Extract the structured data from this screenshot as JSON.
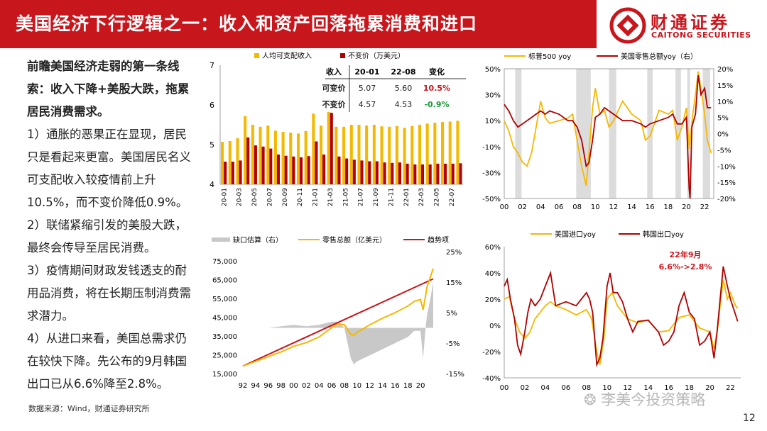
{
  "header": {
    "title": "美国经济下行逻辑之一：收入和资产回落拖累消费和进口"
  },
  "logo": {
    "cn": "财通证券",
    "en": "CAITONG SECURITIES"
  },
  "left_text": {
    "lead": "前瞻美国经济走弱的第一条线索：收入下降+美股大跌，拖累居民消费需求。",
    "p1": "1）通胀的恶果正在显现，居民只是看起来更富。美国居民名义可支配收入较疫情前上升10.5%，而不变价降低0.9%。",
    "p2": "2）联储紧缩引发的美股大跌，最终会传导至居民消费。",
    "p3": "3）疫情期间财政发钱透支的耐用品消费，将在长期压制消费需求潜力。",
    "p4": "4）从进口来看，美国总需求仍在较快下降。先公布的9月韩国出口已从6.6%降至2.8%。"
  },
  "source": "数据来源：Wind，财通证券研究所",
  "page_number": "12",
  "watermark": "李美今投资策略",
  "colors": {
    "accent_red": "#c8161d",
    "yellow": "#f5b800",
    "dark_red": "#b00000",
    "green": "#1a9a3a",
    "gray": "#c8c8c8"
  },
  "chart_data": [
    {
      "id": "income",
      "type": "bar",
      "legend": [
        "人均可支配收入",
        "不变价（万美元）"
      ],
      "categories": [
        "20-01",
        "20-02",
        "20-03",
        "20-04",
        "20-05",
        "20-06",
        "20-07",
        "20-08",
        "20-09",
        "20-10",
        "20-11",
        "20-12",
        "21-01",
        "21-02",
        "21-03",
        "21-04",
        "21-05",
        "21-06",
        "21-07",
        "21-08",
        "21-09",
        "21-10",
        "21-11",
        "21-12",
        "22-01",
        "22-02",
        "22-03",
        "22-04",
        "22-05",
        "22-06",
        "22-07",
        "22-08"
      ],
      "tick_labels": [
        "20-01",
        "20-03",
        "20-05",
        "20-07",
        "20-09",
        "20-11",
        "21-01",
        "21-03",
        "21-05",
        "21-07",
        "21-09",
        "21-11",
        "22-01",
        "22-03",
        "22-05",
        "22-07"
      ],
      "series": [
        {
          "name": "人均可支配收入",
          "values": [
            5.07,
            5.09,
            5.16,
            5.72,
            5.5,
            5.45,
            5.48,
            5.35,
            5.32,
            5.3,
            5.28,
            5.34,
            5.78,
            5.48,
            6.6,
            5.45,
            5.45,
            5.5,
            5.5,
            5.48,
            5.5,
            5.46,
            5.45,
            5.47,
            5.42,
            5.47,
            5.5,
            5.53,
            5.55,
            5.57,
            5.58,
            5.6
          ]
        },
        {
          "name": "不变价（万美元）",
          "values": [
            4.57,
            4.57,
            4.6,
            5.18,
            4.98,
            4.95,
            4.9,
            4.75,
            4.72,
            4.7,
            4.68,
            4.71,
            5.08,
            4.75,
            5.8,
            4.7,
            4.65,
            4.62,
            4.6,
            4.58,
            4.58,
            4.55,
            4.54,
            4.55,
            4.52,
            4.5,
            4.5,
            4.5,
            4.52,
            4.52,
            4.52,
            4.53
          ]
        }
      ],
      "ylim": [
        4,
        7
      ],
      "yticks": [
        "4",
        "5",
        "6",
        "7"
      ],
      "table": {
        "headers": [
          "收入",
          "20-01",
          "22-08",
          "变化"
        ],
        "rows": [
          [
            "可变价",
            "5.07",
            "5.60",
            "10.5%"
          ],
          [
            "不变价",
            "4.57",
            "4.53",
            "-0.9%"
          ]
        ]
      }
    },
    {
      "id": "sp500_retail",
      "type": "line",
      "legend": [
        "标普500 yoy",
        "美国零售总额yoy（右）"
      ],
      "xticks": [
        "00",
        "02",
        "04",
        "06",
        "08",
        "10",
        "12",
        "14",
        "16",
        "18",
        "20",
        "22"
      ],
      "yticks_left": [
        "50%",
        "30%",
        "10%",
        "-10%",
        "-30%",
        "-50%"
      ],
      "yticks_right": [
        "20%",
        "15%",
        "10%",
        "5%",
        "0%",
        "-5%",
        "-10%",
        "-15%",
        "-20%"
      ],
      "ylim_left": [
        -50,
        50
      ],
      "ylim_right": [
        -20,
        20
      ],
      "recessions": [
        [
          2001.2,
          2001.9
        ],
        [
          2007.9,
          2009.5
        ],
        [
          2020.1,
          2020.4
        ]
      ],
      "series": [
        {
          "name": "标普500 yoy",
          "x": [
            2000,
            2000.5,
            2001,
            2001.5,
            2002,
            2002.5,
            2003,
            2003.5,
            2004,
            2004.5,
            2005,
            2006,
            2007,
            2007.5,
            2008,
            2008.5,
            2009,
            2009.3,
            2009.7,
            2010,
            2010.5,
            2011,
            2011.5,
            2012,
            2013,
            2014,
            2015,
            2015.5,
            2016,
            2017,
            2018,
            2018.5,
            2019,
            2019.5,
            2020,
            2020.3,
            2020.7,
            2021,
            2021.3,
            2021.7,
            2022,
            2022.3,
            2022.7
          ],
          "values": [
            10,
            2,
            -10,
            -15,
            -22,
            -25,
            -15,
            5,
            25,
            12,
            8,
            10,
            12,
            15,
            -5,
            -25,
            -40,
            -15,
            20,
            35,
            15,
            18,
            5,
            10,
            25,
            15,
            10,
            -5,
            -2,
            18,
            15,
            18,
            -5,
            5,
            20,
            -12,
            15,
            30,
            48,
            30,
            15,
            -5,
            -15
          ]
        },
        {
          "name": "美国零售总额yoy（右）",
          "x": [
            2000,
            2000.5,
            2001,
            2001.5,
            2002,
            2002.5,
            2003,
            2003.5,
            2004,
            2004.5,
            2005,
            2006,
            2007,
            2007.5,
            2008,
            2008.5,
            2009,
            2009.3,
            2009.7,
            2010,
            2010.5,
            2011,
            2011.5,
            2012,
            2013,
            2014,
            2015,
            2015.5,
            2016,
            2017,
            2018,
            2018.5,
            2019,
            2019.5,
            2020,
            2020.3,
            2020.4,
            2020.6,
            2021,
            2021.3,
            2021.6,
            2022,
            2022.3,
            2022.7
          ],
          "values": [
            9,
            7,
            4,
            2,
            3,
            4,
            5,
            6,
            7,
            6,
            7,
            6,
            4,
            4,
            2,
            -2,
            -10,
            -9,
            -2,
            5,
            6,
            8,
            7,
            6,
            4,
            4,
            3,
            2,
            3,
            4,
            5,
            6,
            3,
            3,
            5,
            -17,
            -20,
            2,
            6,
            18,
            12,
            14,
            8,
            8
          ]
        }
      ]
    },
    {
      "id": "retail_trend",
      "type": "line",
      "legend": [
        "缺口估算（右）",
        "零售总额（亿美元）",
        "趋势项"
      ],
      "xticks": [
        "92",
        "94",
        "96",
        "98",
        "00",
        "02",
        "04",
        "06",
        "08",
        "10",
        "12",
        "14",
        "16",
        "18",
        "20"
      ],
      "yticks_left": [
        "75,000",
        "65,000",
        "55,000",
        "45,000",
        "35,000",
        "25,000",
        "15,000"
      ],
      "yticks_right": [
        "25%",
        "15%",
        "5%",
        "-5%",
        "-15%"
      ],
      "ylim_left": [
        15000,
        80000
      ],
      "ylim_right": [
        -15,
        25
      ],
      "series": [
        {
          "name": "零售总额（亿美元）",
          "x": [
            1992,
            1994,
            1996,
            1998,
            2000,
            2002,
            2004,
            2006,
            2007,
            2008,
            2009,
            2009.5,
            2010,
            2012,
            2014,
            2016,
            2018,
            2019,
            2020,
            2020.4,
            2020.8,
            2021,
            2021.5,
            2022
          ],
          "values": [
            19000,
            21500,
            24000,
            26500,
            29500,
            31500,
            34500,
            39500,
            41500,
            41000,
            36000,
            35500,
            37000,
            41000,
            44500,
            47500,
            51000,
            53500,
            54500,
            49000,
            56500,
            61000,
            66000,
            71000
          ]
        },
        {
          "name": "趋势项",
          "x": [
            1992,
            2022
          ],
          "values": [
            19000,
            65500
          ]
        },
        {
          "name": "缺口估算（右）",
          "x": [
            1992,
            1994,
            1996,
            1998,
            2000,
            2002,
            2004,
            2006,
            2007,
            2008,
            2009,
            2009.5,
            2010,
            2012,
            2014,
            2016,
            2018,
            2019,
            2020,
            2020.4,
            2020.8,
            2021,
            2021.5,
            2022
          ],
          "values": [
            0,
            0,
            0,
            0.5,
            1,
            0.5,
            1,
            2,
            2,
            0,
            -10,
            -12,
            -11,
            -9,
            -7,
            -5,
            -3,
            -1,
            -1,
            -10,
            0,
            4,
            9,
            15
          ]
        }
      ]
    },
    {
      "id": "imports_exports",
      "type": "line",
      "legend": [
        "美国进口yoy",
        "韩国出口yoy"
      ],
      "annotation": [
        "22年9月",
        "6.6%->2.8%"
      ],
      "xticks": [
        "00",
        "02",
        "04",
        "06",
        "08",
        "10",
        "12",
        "14",
        "16",
        "18",
        "20",
        "22"
      ],
      "yticks": [
        "60%",
        "40%",
        "20%",
        "0%",
        "-20%",
        "-40%"
      ],
      "ylim": [
        -40,
        60
      ],
      "series": [
        {
          "name": "美国进口yoy",
          "x": [
            2000,
            2000.5,
            2001,
            2001.5,
            2002,
            2002.5,
            2003,
            2003.5,
            2004,
            2004.5,
            2005,
            2006,
            2007,
            2008,
            2008.5,
            2009,
            2009.3,
            2009.7,
            2010,
            2010.5,
            2011,
            2012,
            2013,
            2014,
            2015,
            2016,
            2017,
            2018,
            2019,
            2020,
            2020.4,
            2020.8,
            2021,
            2021.3,
            2021.7,
            2022,
            2022.5,
            2022.7
          ],
          "values": [
            20,
            22,
            5,
            -5,
            -10,
            -5,
            5,
            10,
            15,
            18,
            15,
            12,
            8,
            12,
            5,
            -20,
            -30,
            -10,
            20,
            25,
            15,
            5,
            2,
            4,
            -5,
            -4,
            6,
            8,
            -2,
            -5,
            -18,
            0,
            15,
            35,
            20,
            25,
            15,
            13
          ]
        },
        {
          "name": "韩国出口yoy",
          "x": [
            2000,
            2000.3,
            2000.6,
            2001,
            2001.3,
            2001.6,
            2002,
            2002.3,
            2002.6,
            2003,
            2003.5,
            2004,
            2004.5,
            2005,
            2006,
            2007,
            2008,
            2008.3,
            2008.6,
            2009,
            2009.3,
            2009.6,
            2010,
            2010.3,
            2010.6,
            2011,
            2011.5,
            2012,
            2012.5,
            2013,
            2014,
            2015,
            2015.5,
            2016,
            2016.5,
            2017,
            2017.5,
            2018,
            2018.5,
            2019,
            2019.5,
            2020,
            2020.4,
            2020.7,
            2021,
            2021.3,
            2021.7,
            2022,
            2022.5,
            2022.7
          ],
          "values": [
            30,
            35,
            20,
            5,
            -15,
            -22,
            -5,
            10,
            20,
            15,
            20,
            30,
            40,
            15,
            18,
            15,
            25,
            20,
            10,
            -30,
            -25,
            -10,
            30,
            40,
            25,
            25,
            18,
            5,
            -5,
            3,
            4,
            -5,
            -15,
            -12,
            -5,
            15,
            25,
            10,
            5,
            -15,
            -12,
            -5,
            -25,
            -5,
            20,
            45,
            30,
            20,
            8,
            3
          ]
        }
      ]
    }
  ]
}
